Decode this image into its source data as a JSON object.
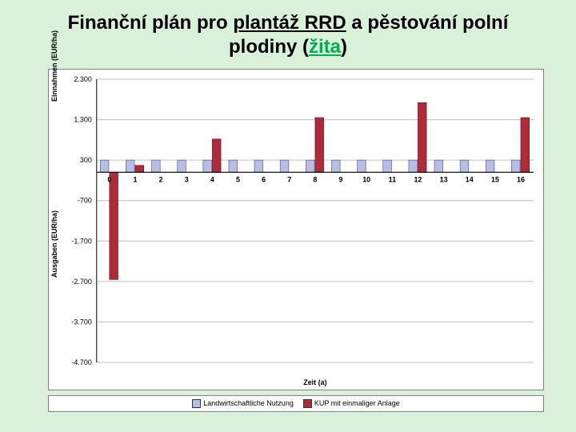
{
  "title": {
    "pre": "Finanční plán pro ",
    "u1": "plantáž RRD",
    "mid": " a  pěstování polní plodiny (",
    "u2": "žita",
    "post": ")"
  },
  "chart": {
    "type": "bar",
    "background_color": "#ffffff",
    "page_bg": "#d9f0d9",
    "border_color": "#808080",
    "grid_color": "#c0c0c0",
    "xlabel": "Zeit (a)",
    "ylabel_income": "Einnahmen (EUR/ha)",
    "ylabel_expense": "Ausgaben (EUR/ha)",
    "label_fontsize": 9,
    "ylim": [
      -4700,
      2300
    ],
    "ytick_step": 1000,
    "yticks": [
      2300,
      1300,
      300,
      -700,
      -1700,
      -2700,
      -3700,
      -4700
    ],
    "zero_line_value": 300,
    "x_categories": [
      "0",
      "1",
      "2",
      "3",
      "4",
      "5",
      "6",
      "7",
      "8",
      "9",
      "10",
      "11",
      "12",
      "13",
      "14",
      "15",
      "16"
    ],
    "series": [
      {
        "name": "Landwirtschaftliche Nutzung",
        "color": "#b7bde5",
        "border": "#5a5f9e",
        "values": [
          300,
          300,
          300,
          300,
          300,
          300,
          300,
          300,
          300,
          300,
          300,
          300,
          300,
          300,
          300,
          300,
          300
        ]
      },
      {
        "name": "KUP mit einmaliger Anlage",
        "color": "#b02a3a",
        "border": "#6e1a24",
        "values": [
          -2650,
          170,
          0,
          0,
          820,
          0,
          0,
          0,
          1350,
          0,
          0,
          0,
          1720,
          0,
          0,
          0,
          1350
        ]
      }
    ],
    "bar_group_width": 0.72,
    "font_family": "Arial"
  },
  "legend": {
    "items": [
      {
        "label": "Landwirtschaftliche Nutzung",
        "color": "#b7bde5"
      },
      {
        "label": "KUP mit einmaliger Anlage",
        "color": "#b02a3a"
      }
    ]
  }
}
